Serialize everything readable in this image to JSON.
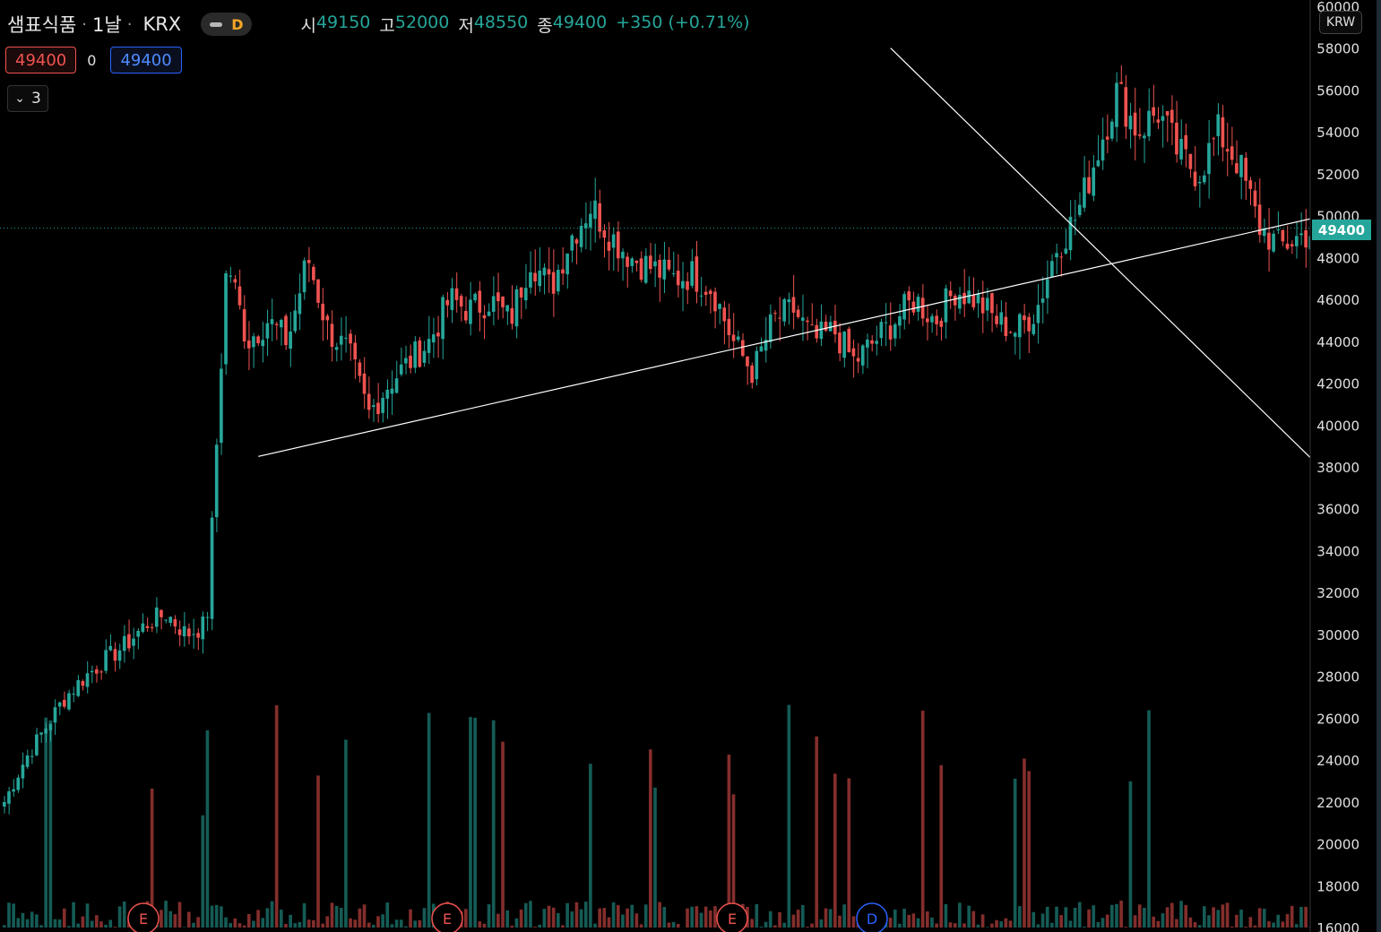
{
  "header": {
    "symbol": "샘표식품",
    "separator": "·",
    "interval": "1날",
    "exchange": "KRX",
    "badge_label": "D",
    "ohlc": {
      "open_label": "시",
      "open": "49150",
      "high_label": "고",
      "high": "52000",
      "low_label": "저",
      "low": "48550",
      "close_label": "종",
      "close": "49400",
      "change": "+350 (+0.71%)"
    }
  },
  "trade": {
    "sell_price": "49400",
    "spread": "0",
    "buy_price": "49400"
  },
  "indicators": {
    "collapsed_count": "3"
  },
  "axis": {
    "currency": "KRW",
    "current_price_label": "49400"
  },
  "events": [
    {
      "label": "E",
      "kind": "earnings"
    },
    {
      "label": "E",
      "kind": "earnings"
    },
    {
      "label": "E",
      "kind": "earnings"
    },
    {
      "label": "D",
      "kind": "dividend"
    }
  ],
  "colors": {
    "up": "#26a69a",
    "down": "#ef5350",
    "background": "#000000",
    "axis_text": "#e0e0e0",
    "trendline": "#ffffff"
  },
  "chart_data": {
    "type": "candlestick",
    "interval": "1D",
    "ylim": [
      16000,
      60000
    ],
    "y_ticks": [
      16000,
      18000,
      20000,
      22000,
      24000,
      26000,
      28000,
      30000,
      32000,
      34000,
      36000,
      38000,
      40000,
      42000,
      44000,
      46000,
      48000,
      50000,
      52000,
      54000,
      56000,
      58000,
      60000
    ],
    "current_price": 49400,
    "candles_anchor_closes": [
      22000,
      24000,
      25500,
      27000,
      28000,
      28800,
      29500,
      30500,
      31000,
      30000,
      30500,
      48000,
      44000,
      45000,
      44000,
      48000,
      44500,
      43500,
      40500,
      42000,
      43000,
      44000,
      46000,
      45500,
      46000,
      45000,
      48000,
      46500,
      49000,
      50500,
      49000,
      48000,
      47500,
      47000,
      47200,
      46500,
      44000,
      42500,
      45000,
      45500,
      44000,
      44500,
      43000,
      44000,
      45000,
      46000,
      45000,
      46500,
      46000,
      45000,
      44500,
      45500,
      48500,
      50000,
      53000,
      56000,
      54000,
      55000,
      53000,
      52000,
      54000,
      52500,
      49500,
      48500,
      49000,
      49400
    ],
    "trendlines": [
      {
        "name": "support",
        "from": {
          "bar": 55,
          "price": 38500
        },
        "to": {
          "bar": 286,
          "price": 50000
        }
      },
      {
        "name": "resistance",
        "from": {
          "bar": 192,
          "price": 58000
        },
        "to": {
          "bar": 285,
          "price": 38000
        }
      }
    ],
    "volume": {
      "max_relative": 1.0
    }
  }
}
